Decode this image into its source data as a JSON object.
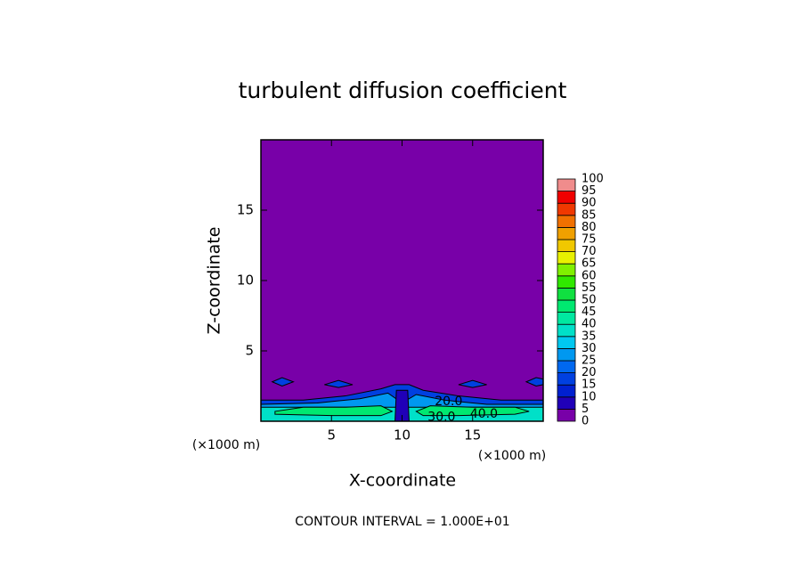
{
  "chart_data": {
    "type": "contour",
    "title": "turbulent diffusion coefficient",
    "x_label": "X-coordinate",
    "y_label": "Z-coordinate",
    "x_unit_left": "(×1000 m)",
    "x_unit_right": "(×1000 m)",
    "footer": "CONTOUR INTERVAL = 1.000E+01",
    "xlim": [
      0,
      20
    ],
    "ylim": [
      0,
      20
    ],
    "xticks": [
      5,
      10,
      15
    ],
    "yticks": [
      5,
      10,
      15
    ],
    "background_level": 0,
    "levels": [
      0,
      5,
      10,
      15,
      20,
      25,
      30,
      35,
      40,
      45,
      50,
      55,
      60,
      65,
      70,
      75,
      80,
      85,
      90,
      95,
      100
    ],
    "colors": [
      "#7800a8",
      "#2000b8",
      "#0020d0",
      "#0040e0",
      "#0068f0",
      "#0098f0",
      "#00c8f0",
      "#00e0c8",
      "#00e8a0",
      "#00e870",
      "#10e040",
      "#30e800",
      "#80f000",
      "#e8f000",
      "#f0c800",
      "#f0a000",
      "#f07000",
      "#f03800",
      "#f00000",
      "#f08c8c"
    ],
    "regions": [
      {
        "level": 15,
        "x": [
          0,
          0,
          3,
          6,
          8.5,
          9.5,
          10.5,
          11.5,
          14,
          17,
          20,
          20
        ],
        "z": [
          0,
          1.5,
          1.5,
          1.8,
          2.3,
          2.6,
          2.6,
          2.2,
          1.8,
          1.5,
          1.5,
          0
        ]
      },
      {
        "level": 15,
        "x": [
          0.8,
          1.5,
          2.3,
          1.5
        ],
        "z": [
          2.8,
          3.1,
          2.8,
          2.5
        ]
      },
      {
        "level": 15,
        "x": [
          4.5,
          5.5,
          6.5,
          5.5
        ],
        "z": [
          2.6,
          2.9,
          2.6,
          2.4
        ]
      },
      {
        "level": 15,
        "x": [
          14,
          15,
          16,
          15
        ],
        "z": [
          2.6,
          2.9,
          2.6,
          2.4
        ]
      },
      {
        "level": 15,
        "x": [
          18.8,
          19.5,
          20,
          20,
          19.5
        ],
        "z": [
          2.8,
          3.1,
          3.0,
          2.6,
          2.5
        ]
      },
      {
        "level": 25,
        "x": [
          0,
          0,
          4,
          7,
          9,
          10,
          11,
          13,
          16,
          20,
          20
        ],
        "z": [
          0,
          1.2,
          1.3,
          1.6,
          2.0,
          1.3,
          1.9,
          1.5,
          1.2,
          1.2,
          0
        ]
      },
      {
        "level": 35,
        "x": [
          0,
          0,
          20,
          20
        ],
        "z": [
          0,
          1.0,
          1.0,
          0
        ]
      },
      {
        "level": 45,
        "x": [
          1,
          3,
          6,
          8.5,
          9.3,
          8.5,
          5,
          1
        ],
        "z": [
          0.7,
          1.0,
          1.0,
          1.1,
          0.7,
          0.4,
          0.4,
          0.5
        ]
      },
      {
        "level": 45,
        "x": [
          11,
          12,
          15,
          18,
          19,
          18,
          14,
          11.5
        ],
        "z": [
          0.7,
          1.1,
          1.0,
          1.0,
          0.7,
          0.5,
          0.4,
          0.4
        ]
      },
      {
        "level": 5,
        "x": [
          9.5,
          9.6,
          10.4,
          10.5
        ],
        "z": [
          0,
          2.2,
          2.2,
          0
        ]
      }
    ],
    "contour_labels": [
      {
        "value": 20,
        "label": "20.0",
        "x": 13.3,
        "z": 1.4
      },
      {
        "value": 30,
        "label": "30.0",
        "x": 12.8,
        "z": 0.3
      },
      {
        "value": 40,
        "label": "40.0",
        "x": 15.8,
        "z": 0.5
      }
    ]
  }
}
